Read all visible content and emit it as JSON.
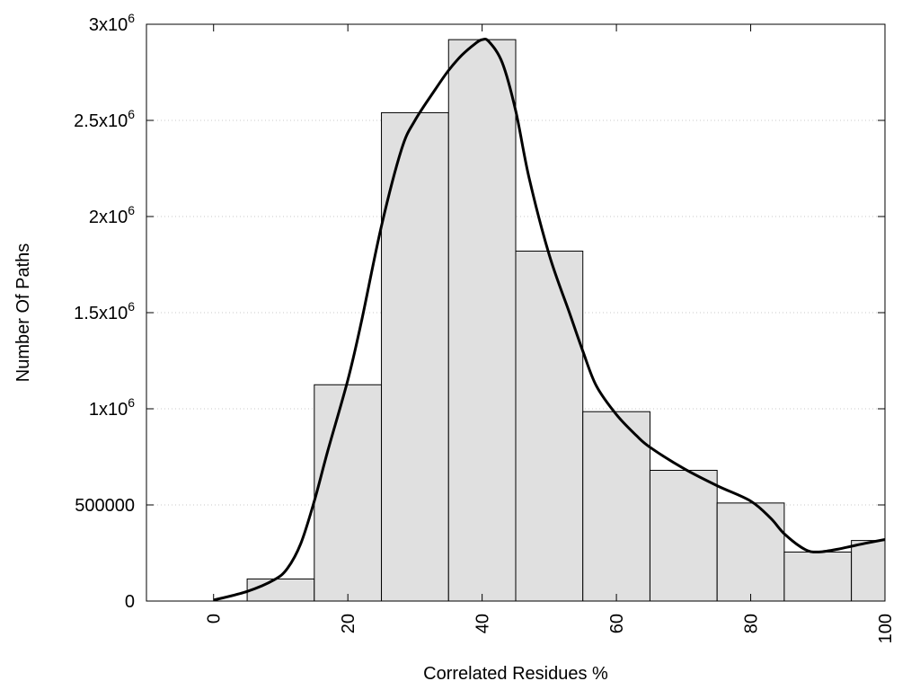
{
  "chart_data": {
    "type": "bar",
    "xlabel": "Correlated Residues %",
    "ylabel": "Number Of Paths",
    "xlim": [
      -10,
      100
    ],
    "ylim": [
      0,
      3000000
    ],
    "grid": "horizontal-dotted",
    "x_ticks": [
      {
        "value": 0,
        "label": "0"
      },
      {
        "value": 20,
        "label": "20"
      },
      {
        "value": 40,
        "label": "40"
      },
      {
        "value": 60,
        "label": "60"
      },
      {
        "value": 80,
        "label": "80"
      },
      {
        "value": 100,
        "label": "100"
      }
    ],
    "y_ticks": [
      {
        "value": 0,
        "base": "0",
        "exp": ""
      },
      {
        "value": 500000,
        "base": "500000",
        "exp": ""
      },
      {
        "value": 1000000,
        "base": "1x10",
        "exp": "6"
      },
      {
        "value": 1500000,
        "base": "1.5x10",
        "exp": "6"
      },
      {
        "value": 2000000,
        "base": "2x10",
        "exp": "6"
      },
      {
        "value": 2500000,
        "base": "2.5x10",
        "exp": "6"
      },
      {
        "value": 3000000,
        "base": "3x10",
        "exp": "6"
      }
    ],
    "bins": [
      {
        "x0": 5,
        "x1": 15,
        "value": 115000
      },
      {
        "x0": 15,
        "x1": 25,
        "value": 1125000
      },
      {
        "x0": 25,
        "x1": 35,
        "value": 2540000
      },
      {
        "x0": 35,
        "x1": 45,
        "value": 2920000
      },
      {
        "x0": 45,
        "x1": 55,
        "value": 1820000
      },
      {
        "x0": 55,
        "x1": 65,
        "value": 985000
      },
      {
        "x0": 65,
        "x1": 75,
        "value": 680000
      },
      {
        "x0": 75,
        "x1": 85,
        "value": 510000
      },
      {
        "x0": 85,
        "x1": 95,
        "value": 255000
      },
      {
        "x0": 95,
        "x1": 100,
        "value": 315000
      }
    ],
    "density_curve": {
      "x": [
        0,
        5,
        9,
        11,
        13,
        15,
        17,
        20,
        22,
        25,
        28,
        30,
        33,
        35,
        37,
        39,
        40,
        41,
        43,
        45,
        47,
        50,
        53,
        55,
        57,
        60,
        63,
        65,
        70,
        75,
        80,
        83,
        85,
        88,
        90,
        93,
        95,
        97,
        100
      ],
      "y": [
        5000,
        50000,
        110000,
        170000,
        300000,
        520000,
        780000,
        1150000,
        1450000,
        1950000,
        2350000,
        2500000,
        2660000,
        2760000,
        2840000,
        2900000,
        2920000,
        2910000,
        2800000,
        2550000,
        2200000,
        1800000,
        1500000,
        1300000,
        1120000,
        970000,
        860000,
        800000,
        690000,
        600000,
        520000,
        430000,
        350000,
        270000,
        255000,
        270000,
        285000,
        300000,
        320000
      ]
    },
    "bar_color": "#e0e0e0",
    "line_color": "#000000",
    "grid_color": "#c8c8c8"
  }
}
